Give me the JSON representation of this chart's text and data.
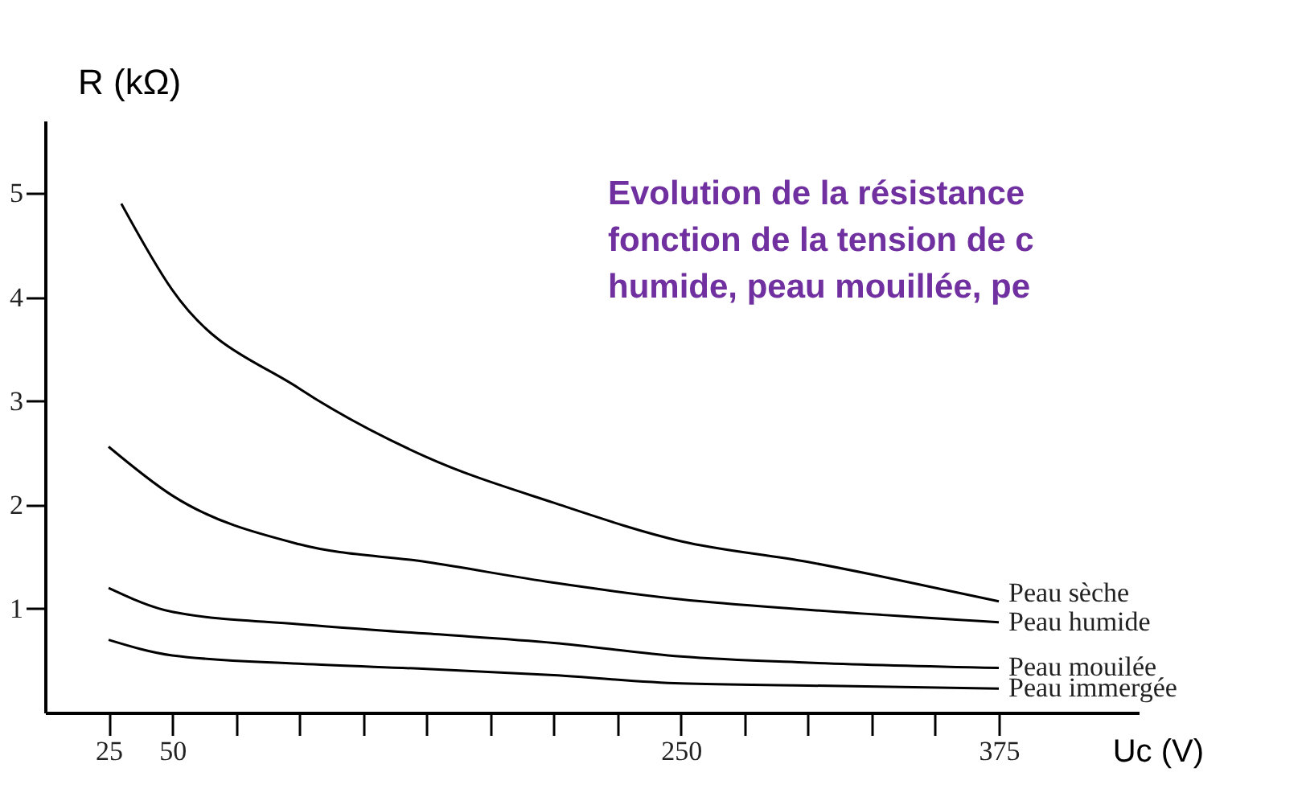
{
  "chart_data": {
    "type": "line",
    "title": [
      "Evolution de la résistance",
      "fonction de la tension de c",
      "humide, peau mouillée, pe"
    ],
    "xlabel": "Uc (V)",
    "ylabel": "R (kΩ)",
    "xlim": [
      0,
      430
    ],
    "ylim": [
      0,
      5.7
    ],
    "xticks": [
      25,
      50,
      {
        "value": 75,
        "label": null
      },
      {
        "value": 100,
        "label": null
      },
      {
        "value": 125,
        "label": null
      },
      {
        "value": 150,
        "label": null
      },
      {
        "value": 175,
        "label": null
      },
      {
        "value": 200,
        "label": null
      },
      {
        "value": 225,
        "label": null
      },
      250,
      {
        "value": 275,
        "label": null
      },
      {
        "value": 300,
        "label": null
      },
      {
        "value": 325,
        "label": null
      },
      {
        "value": 350,
        "label": null
      },
      375
    ],
    "yticks": [
      1,
      2,
      3,
      4,
      5
    ],
    "grid": false,
    "line_style": "solid",
    "x": [
      30,
      50,
      100,
      150,
      200,
      250,
      300,
      325,
      350,
      375
    ],
    "series": [
      {
        "name": "Peau sèche",
        "color": "#000000",
        "values": [
          4.9,
          4.07,
          3.12,
          2.46,
          2.02,
          1.65,
          1.45,
          1.33,
          1.2,
          1.07
        ]
      },
      {
        "name": "Peau humide",
        "color": "#000000",
        "x": [
          25,
          50,
          100,
          150,
          200,
          250,
          300,
          375
        ],
        "values": [
          2.56,
          2.09,
          1.62,
          1.45,
          1.25,
          1.09,
          0.99,
          0.87
        ]
      },
      {
        "name": "Peau mouilée",
        "color": "#000000",
        "x": [
          25,
          50,
          100,
          150,
          200,
          250,
          300,
          375
        ],
        "values": [
          1.2,
          0.97,
          0.85,
          0.76,
          0.67,
          0.54,
          0.48,
          0.43
        ]
      },
      {
        "name": "Peau immergée",
        "color": "#000000",
        "x": [
          25,
          50,
          100,
          150,
          200,
          250,
          300,
          375
        ],
        "values": [
          0.7,
          0.55,
          0.47,
          0.42,
          0.36,
          0.28,
          0.26,
          0.23
        ]
      }
    ]
  }
}
